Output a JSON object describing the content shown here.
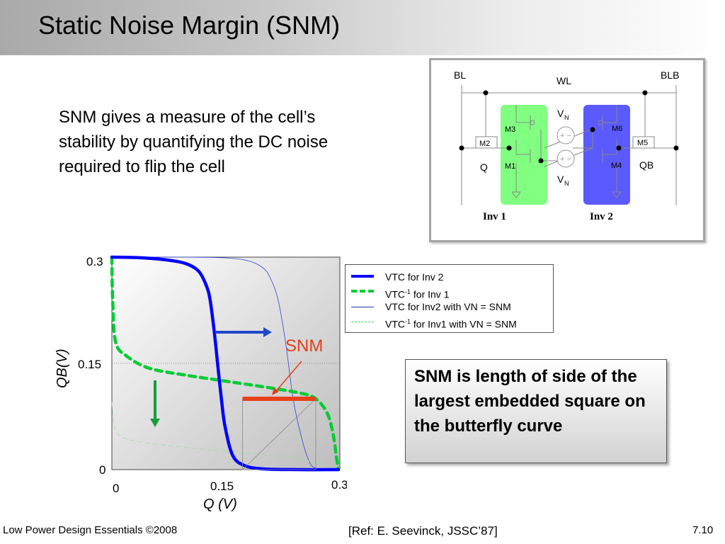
{
  "title": "Static Noise Margin (SNM)",
  "body_text": "SNM gives a measure of the cell’s stability by quantifying the DC noise required to flip the cell",
  "circuit": {
    "bl": "BL",
    "blb": "BLB",
    "wl": "WL",
    "m1": "M1",
    "m2": "M2",
    "m3": "M3",
    "m4": "M4",
    "m5": "M5",
    "m6": "M6",
    "q": "Q",
    "qb": "QB",
    "vn_top": "V",
    "vn_bottom": "V",
    "vn_sub": "N",
    "inv1": "Inv 1",
    "inv2": "Inv 2",
    "inv1_color": "#80ff80",
    "inv2_color": "#5a5aff"
  },
  "chart_data": {
    "type": "line",
    "xlabel": "Q (V)",
    "ylabel": "QB(V)",
    "xlim": [
      0,
      0.3
    ],
    "ylim": [
      0,
      0.3
    ],
    "x_ticks": [
      "0",
      "0.15",
      "0.3"
    ],
    "y_ticks": [
      "0",
      "0.15",
      "0.3"
    ],
    "series": [
      {
        "name": "VTC for Inv 2",
        "color": "#0000ff",
        "style": "solid-thick",
        "x": [
          0,
          0.04,
          0.08,
          0.1,
          0.115,
          0.125,
          0.13,
          0.135,
          0.14,
          0.145,
          0.15,
          0.16,
          0.175,
          0.2,
          0.25,
          0.3
        ],
        "y": [
          0.3,
          0.299,
          0.295,
          0.29,
          0.28,
          0.26,
          0.24,
          0.2,
          0.15,
          0.1,
          0.06,
          0.02,
          0.006,
          0.001,
          0.0,
          0.0
        ]
      },
      {
        "name": "VTC-1 for Inv 1",
        "color": "#00cc33",
        "style": "dashed-thick",
        "x": [
          0,
          0.001,
          0.005,
          0.02,
          0.05,
          0.1,
          0.15,
          0.2,
          0.25,
          0.27,
          0.285,
          0.293,
          0.297,
          0.3
        ],
        "y": [
          0.3,
          0.24,
          0.18,
          0.16,
          0.143,
          0.133,
          0.125,
          0.117,
          0.108,
          0.1,
          0.08,
          0.05,
          0.02,
          0.0
        ]
      },
      {
        "name": "VTC for  Inv2 with VN = SNM",
        "color": "#3344cc",
        "style": "solid-thin",
        "x": [
          0,
          0.1,
          0.15,
          0.18,
          0.2,
          0.21,
          0.22,
          0.23,
          0.24,
          0.25,
          0.26,
          0.27,
          0.3
        ],
        "y": [
          0.3,
          0.3,
          0.299,
          0.295,
          0.285,
          0.27,
          0.24,
          0.18,
          0.1,
          0.05,
          0.015,
          0.002,
          0.0
        ]
      },
      {
        "name": "VTC-1 for Inv1 with VN = SNM",
        "color": "#99e099",
        "style": "dashed-thin",
        "x": [
          0,
          0.002,
          0.005,
          0.01,
          0.02,
          0.05,
          0.1,
          0.15,
          0.2,
          0.25,
          0.3
        ],
        "y": [
          0.095,
          0.07,
          0.055,
          0.048,
          0.043,
          0.037,
          0.031,
          0.026,
          0.021,
          0.015,
          0.0
        ]
      }
    ],
    "snm_square": {
      "x0": 0.173,
      "x1": 0.27,
      "y0": 0.0,
      "y1": 0.1
    },
    "snm_label": "SNM",
    "legend": [
      {
        "label": "VTC for Inv 2",
        "color": "#0000ff",
        "style": "solid-thick"
      },
      {
        "label_pre": "VTC",
        "label_sup": "-1",
        "label_post": " for Inv 1",
        "color": "#00cc33",
        "style": "dashed-thick"
      },
      {
        "label": "VTC for  Inv2 with VN = SNM",
        "color": "#2233aa",
        "style": "solid-thin"
      },
      {
        "label_pre": "VTC",
        "label_sup": "-1",
        "label_post": " for Inv1 with VN = SNM",
        "color": "#44cc44",
        "style": "dashed-thin"
      }
    ]
  },
  "callout": "SNM is length of side of the largest embedded square on the butterfly curve",
  "footer": {
    "left": "Low Power Design Essentials ©2008",
    "center": "[Ref: E. Seevinck, JSSC’87]",
    "right": "7.10"
  }
}
